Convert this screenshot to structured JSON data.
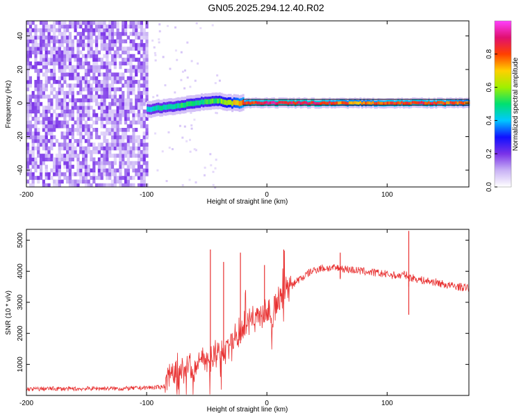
{
  "title": "GN05.2025.294.12.40.R02",
  "colors": {
    "snr_line": "#e83030",
    "spec_line": "#111111",
    "axis": "#000000",
    "colormap": [
      "#ffffff",
      "#c9b2f5",
      "#7a32e8",
      "#1010ff",
      "#00c8ff",
      "#00e070",
      "#a0f000",
      "#ffd000",
      "#ff4000",
      "#e01070",
      "#ff40ff"
    ]
  },
  "chart_data": [
    {
      "type": "heatmap",
      "name": "spectrogram",
      "title": "GN05.2025.294.12.40.R02",
      "xlabel": "Height of straight line (km)",
      "ylabel": "Frequency (Hz)",
      "xlim": [
        -200,
        168
      ],
      "ylim": [
        -50,
        49
      ],
      "xticks": [
        -200,
        -100,
        0,
        100
      ],
      "yticks": [
        -40,
        -20,
        0,
        20,
        40
      ],
      "colorbar": {
        "label": "Normalized spectral amplitude",
        "range": [
          0,
          1
        ],
        "ticks": [
          0.0,
          0.2,
          0.4,
          0.6,
          0.8
        ]
      },
      "noise_region_x": [
        -200,
        -100
      ],
      "ridge": [
        {
          "x": -100,
          "y": -4,
          "amp": 0.45
        },
        {
          "x": -90,
          "y": -3,
          "amp": 0.5
        },
        {
          "x": -80,
          "y": -2,
          "amp": 0.5
        },
        {
          "x": -70,
          "y": -1,
          "amp": 0.55
        },
        {
          "x": -60,
          "y": 0,
          "amp": 0.55
        },
        {
          "x": -50,
          "y": 1,
          "amp": 0.55
        },
        {
          "x": -40,
          "y": 1,
          "amp": 0.6
        },
        {
          "x": -30,
          "y": 0,
          "amp": 0.7
        },
        {
          "x": -20,
          "y": 0,
          "amp": 0.85
        },
        {
          "x": 0,
          "y": 0,
          "amp": 0.95
        },
        {
          "x": 20,
          "y": 0,
          "amp": 0.95
        },
        {
          "x": 40,
          "y": 0,
          "amp": 0.95
        },
        {
          "x": 60,
          "y": 0,
          "amp": 0.85
        },
        {
          "x": 80,
          "y": 0,
          "amp": 0.8
        },
        {
          "x": 100,
          "y": 0,
          "amp": 0.9
        },
        {
          "x": 120,
          "y": 0,
          "amp": 0.9
        },
        {
          "x": 140,
          "y": 0,
          "amp": 0.9
        },
        {
          "x": 168,
          "y": 0,
          "amp": 0.8
        }
      ]
    },
    {
      "type": "line",
      "name": "snr",
      "xlabel": "Height of straight line (km)",
      "ylabel": "SNR (10 * v/v)",
      "xlim": [
        -200,
        168
      ],
      "ylim": [
        0,
        5350
      ],
      "xticks": [
        -200,
        -100,
        0,
        100
      ],
      "yticks": [
        1000,
        2000,
        3000,
        4000,
        5000
      ],
      "series": [
        {
          "name": "SNR",
          "x": [
            -200,
            -180,
            -160,
            -140,
            -120,
            -100,
            -90,
            -85,
            -80,
            -75,
            -70,
            -65,
            -60,
            -55,
            -50,
            -45,
            -40,
            -35,
            -30,
            -25,
            -20,
            -15,
            -10,
            -5,
            0,
            5,
            10,
            15,
            20,
            25,
            30,
            35,
            40,
            45,
            50,
            60,
            70,
            80,
            90,
            100,
            110,
            115,
            118,
            120,
            125,
            130,
            140,
            150,
            160,
            168
          ],
          "values": [
            200,
            220,
            210,
            230,
            220,
            250,
            260,
            300,
            700,
            600,
            800,
            900,
            850,
            1200,
            1000,
            1300,
            1500,
            1400,
            1700,
            1800,
            2100,
            2300,
            2500,
            2600,
            2700,
            2800,
            3000,
            3300,
            3500,
            3700,
            3800,
            3950,
            4050,
            4100,
            4100,
            4100,
            4050,
            4000,
            3950,
            3900,
            3850,
            3900,
            3800,
            3800,
            3750,
            3700,
            3650,
            3550,
            3500,
            3450
          ]
        }
      ],
      "spikes": [
        {
          "x": -47,
          "y": 4700
        },
        {
          "x": -36,
          "y": 4300
        },
        {
          "x": -22,
          "y": 4600
        },
        {
          "x": -2,
          "y": 4200
        },
        {
          "x": 14,
          "y": 4700
        },
        {
          "x": 61,
          "y": 4600
        },
        {
          "x": 118,
          "y": 5300
        }
      ],
      "dips": [
        {
          "x": 61,
          "y": 3750
        },
        {
          "x": 118,
          "y": 2600
        }
      ]
    }
  ]
}
